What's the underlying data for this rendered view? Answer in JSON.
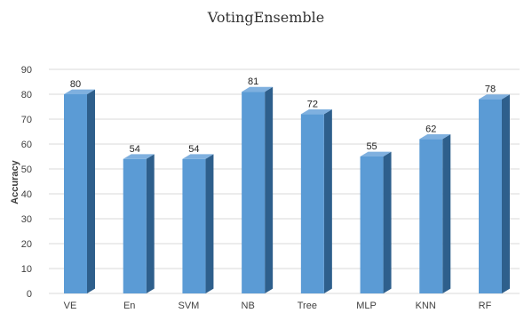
{
  "chart_data": {
    "type": "bar",
    "title": "VotingEnsemble",
    "xlabel": "",
    "ylabel": "Accuracy",
    "ylim": [
      0,
      90
    ],
    "yticks": [
      0,
      10,
      20,
      30,
      40,
      50,
      60,
      70,
      80,
      90
    ],
    "categories": [
      "VE",
      "En",
      "SVM",
      "NB",
      "Tree",
      "MLP",
      "KNN",
      "RF"
    ],
    "values": [
      80,
      54,
      54,
      81,
      72,
      55,
      62,
      78
    ],
    "grid": true,
    "legend": "none",
    "colors": {
      "bar_front": "#5b9bd5",
      "bar_side": "#2e5f8c",
      "bar_top": "#7fb0df",
      "grid": "#d9d9d9"
    }
  }
}
